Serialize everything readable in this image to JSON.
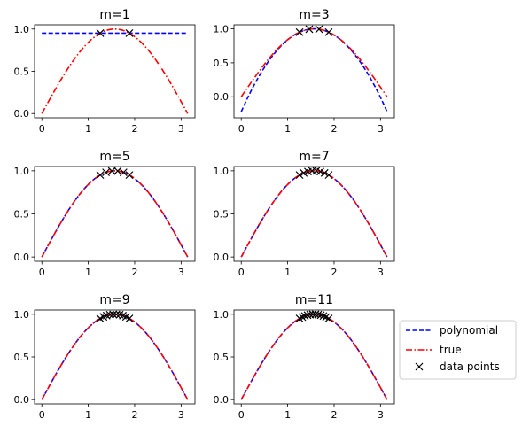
{
  "chart_data": [
    {
      "type": "line",
      "title": "m=1",
      "xlim": [
        -0.157,
        3.299
      ],
      "ylim": [
        -0.05,
        1.05
      ],
      "xticks": [
        "0",
        "1",
        "2",
        "3"
      ],
      "yticks": [
        "0.0",
        "0.5",
        "1.0"
      ],
      "data_points": {
        "x": [
          1.257,
          1.885
        ],
        "y": [
          0.951,
          0.951
        ]
      },
      "polynomial": {
        "type": "constant",
        "value": 0.951
      },
      "true_function": "sin(x)"
    },
    {
      "type": "line",
      "title": "m=3",
      "xlim": [
        -0.157,
        3.299
      ],
      "ylim": [
        -0.31,
        1.06
      ],
      "xticks": [
        "0",
        "1",
        "2",
        "3"
      ],
      "yticks": [
        "0.0",
        "0.5",
        "1.0"
      ],
      "data_points": {
        "x": [
          1.257,
          1.466,
          1.676,
          1.885
        ],
        "y": [
          0.951,
          0.995,
          0.995,
          0.951
        ]
      },
      "polynomial": {
        "type": "fit",
        "x_at_zero": -0.22
      },
      "true_function": "sin(x)"
    },
    {
      "type": "line",
      "title": "m=5",
      "xlim": [
        -0.157,
        3.299
      ],
      "ylim": [
        -0.05,
        1.05
      ],
      "xticks": [
        "0",
        "1",
        "2",
        "3"
      ],
      "yticks": [
        "0.0",
        "0.5",
        "1.0"
      ],
      "data_points": {
        "x": [
          1.257,
          1.382,
          1.508,
          1.634,
          1.759,
          1.885
        ],
        "y": [
          0.951,
          0.982,
          0.998,
          0.998,
          0.982,
          0.951
        ]
      },
      "polynomial": {
        "type": "fit",
        "x_at_zero": 0.0
      },
      "true_function": "sin(x)"
    },
    {
      "type": "line",
      "title": "m=7",
      "xlim": [
        -0.157,
        3.299
      ],
      "ylim": [
        -0.05,
        1.05
      ],
      "xticks": [
        "0",
        "1",
        "2",
        "3"
      ],
      "yticks": [
        "0.0",
        "0.5",
        "1.0"
      ],
      "data_points": {
        "x": [
          1.257,
          1.346,
          1.436,
          1.526,
          1.616,
          1.706,
          1.795,
          1.885
        ],
        "y": [
          0.951,
          0.975,
          0.991,
          0.999,
          0.999,
          0.991,
          0.975,
          0.951
        ]
      },
      "polynomial": {
        "type": "fit",
        "x_at_zero": 0.0
      },
      "true_function": "sin(x)"
    },
    {
      "type": "line",
      "title": "m=9",
      "xlim": [
        -0.157,
        3.299
      ],
      "ylim": [
        -0.05,
        1.05
      ],
      "xticks": [
        "0",
        "1",
        "2",
        "3"
      ],
      "yticks": [
        "0.0",
        "0.5",
        "1.0"
      ],
      "data_points": {
        "x": [
          1.257,
          1.327,
          1.396,
          1.466,
          1.536,
          1.606,
          1.676,
          1.745,
          1.815,
          1.885
        ],
        "y": [
          0.951,
          0.97,
          0.985,
          0.995,
          0.999,
          0.999,
          0.995,
          0.985,
          0.97,
          0.951
        ]
      },
      "polynomial": {
        "type": "fit",
        "x_at_zero": 0.0
      },
      "true_function": "sin(x)"
    },
    {
      "type": "line",
      "title": "m=11",
      "xlim": [
        -0.157,
        3.299
      ],
      "ylim": [
        -0.05,
        1.05
      ],
      "xticks": [
        "0",
        "1",
        "2",
        "3"
      ],
      "yticks": [
        "0.0",
        "0.5",
        "1.0"
      ],
      "data_points": {
        "x": [
          1.257,
          1.314,
          1.371,
          1.428,
          1.485,
          1.542,
          1.6,
          1.657,
          1.714,
          1.771,
          1.828,
          1.885
        ],
        "y": [
          0.951,
          0.967,
          0.98,
          0.99,
          0.996,
          1.0,
          1.0,
          0.996,
          0.99,
          0.98,
          0.967,
          0.951
        ]
      },
      "polynomial": {
        "type": "fit",
        "x_at_zero": 0.0
      },
      "true_function": "sin(x)"
    }
  ],
  "legend": {
    "placement": "right",
    "entries": [
      "polynomial",
      "true",
      "data points"
    ],
    "colors": {
      "polynomial": "#0000ff",
      "true": "#ff0000",
      "data points": "#000000"
    }
  }
}
